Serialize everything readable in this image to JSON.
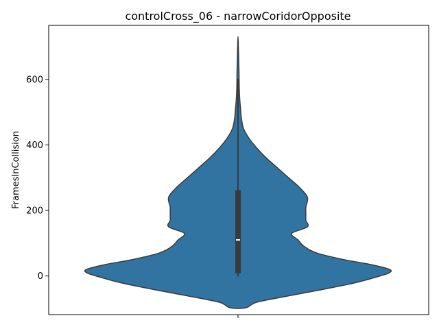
{
  "chart_data": {
    "type": "violin",
    "title": "controlCross_06 - narrowCoridorOpposite",
    "xlabel": "",
    "ylabel": "FramesInCollision",
    "ylim": [
      -118,
      765
    ],
    "yticks": [
      0,
      200,
      400,
      600
    ],
    "ytick_labels": [
      "0",
      "200",
      "400",
      "600"
    ],
    "grid": false,
    "legend": "none",
    "violin": {
      "color": "#3274a1",
      "edge_color": "#3a3a3a",
      "density_profile": [
        {
          "y": -97,
          "half_width": 0.05
        },
        {
          "y": -80,
          "half_width": 0.12
        },
        {
          "y": -60,
          "half_width": 0.33
        },
        {
          "y": -40,
          "half_width": 0.55
        },
        {
          "y": -20,
          "half_width": 0.75
        },
        {
          "y": 0,
          "half_width": 0.9
        },
        {
          "y": 10,
          "half_width": 0.96
        },
        {
          "y": 20,
          "half_width": 0.96
        },
        {
          "y": 35,
          "half_width": 0.84
        },
        {
          "y": 50,
          "half_width": 0.67
        },
        {
          "y": 70,
          "half_width": 0.5
        },
        {
          "y": 90,
          "half_width": 0.42
        },
        {
          "y": 110,
          "half_width": 0.38
        },
        {
          "y": 130,
          "half_width": 0.34
        },
        {
          "y": 150,
          "half_width": 0.44
        },
        {
          "y": 170,
          "half_width": 0.43
        },
        {
          "y": 190,
          "half_width": 0.43
        },
        {
          "y": 210,
          "half_width": 0.43
        },
        {
          "y": 240,
          "half_width": 0.44
        },
        {
          "y": 270,
          "half_width": 0.39
        },
        {
          "y": 300,
          "half_width": 0.32
        },
        {
          "y": 330,
          "half_width": 0.25
        },
        {
          "y": 360,
          "half_width": 0.18
        },
        {
          "y": 390,
          "half_width": 0.12
        },
        {
          "y": 420,
          "half_width": 0.07
        },
        {
          "y": 450,
          "half_width": 0.035
        },
        {
          "y": 480,
          "half_width": 0.022
        },
        {
          "y": 510,
          "half_width": 0.016
        },
        {
          "y": 540,
          "half_width": 0.011
        },
        {
          "y": 570,
          "half_width": 0.008
        },
        {
          "y": 600,
          "half_width": 0.007
        },
        {
          "y": 630,
          "half_width": 0.006
        },
        {
          "y": 660,
          "half_width": 0.0045
        },
        {
          "y": 690,
          "half_width": 0.003
        },
        {
          "y": 715,
          "half_width": 0.0015
        },
        {
          "y": 728,
          "half_width": 0.0
        }
      ],
      "box": {
        "q1": 8,
        "median": 110,
        "q3": 262,
        "whisker_low": -2,
        "whisker_high": 602
      }
    }
  }
}
